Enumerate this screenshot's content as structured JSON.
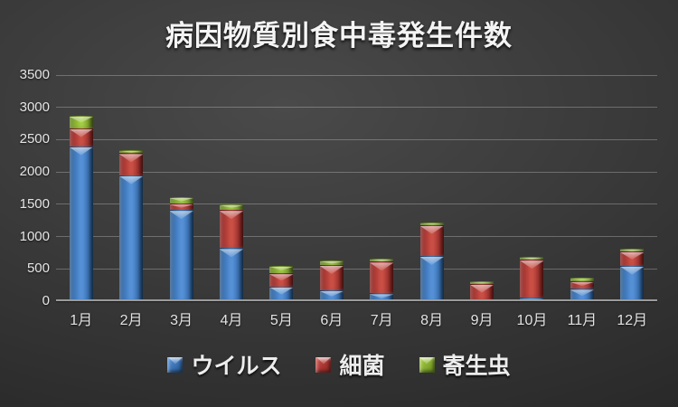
{
  "title": "病因物質別食中毒発生件数",
  "chart_data": {
    "type": "bar",
    "stacked": true,
    "title": "病因物質別食中毒発生件数",
    "categories": [
      "1月",
      "2月",
      "3月",
      "4月",
      "5月",
      "6月",
      "7月",
      "8月",
      "9月",
      "10月",
      "11月",
      "12月"
    ],
    "series": [
      {
        "key": "virus",
        "name": "ウイルス",
        "color": "#4a82cc",
        "values": [
          2400,
          1950,
          1410,
          820,
          230,
          170,
          120,
          700,
          20,
          50,
          190,
          550
        ]
      },
      {
        "key": "bacteria",
        "name": "細菌",
        "color": "#c0443f",
        "values": [
          280,
          340,
          100,
          590,
          200,
          390,
          490,
          480,
          250,
          590,
          120,
          220
        ]
      },
      {
        "key": "parasite",
        "name": "寄生虫",
        "color": "#9bc23c",
        "values": [
          190,
          50,
          100,
          90,
          120,
          70,
          50,
          40,
          40,
          50,
          50,
          40
        ]
      }
    ],
    "xlabel": "",
    "ylabel": "",
    "ylim": [
      0,
      3500
    ],
    "ytick_step": 500,
    "yticks": [
      0,
      500,
      1000,
      1500,
      2000,
      2500,
      3000,
      3500
    ],
    "grid": true,
    "legend_position": "bottom"
  }
}
